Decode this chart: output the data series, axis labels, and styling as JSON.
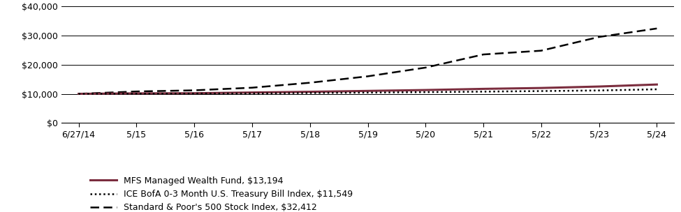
{
  "title": "",
  "x_labels": [
    "6/27/14",
    "5/15",
    "5/16",
    "5/17",
    "5/18",
    "5/19",
    "5/20",
    "5/21",
    "5/22",
    "5/23",
    "5/24"
  ],
  "x_positions": [
    0,
    1,
    2,
    3,
    4,
    5,
    6,
    7,
    8,
    9,
    10
  ],
  "mfs_values": [
    10000,
    10150,
    10200,
    10450,
    10700,
    11000,
    11300,
    11700,
    12000,
    12500,
    13194
  ],
  "ice_values": [
    10000,
    10020,
    10080,
    10160,
    10280,
    10420,
    10580,
    10750,
    10950,
    11150,
    11549
  ],
  "sp500_values": [
    10000,
    10800,
    11200,
    12100,
    13800,
    16000,
    19000,
    23500,
    24800,
    29500,
    32412
  ],
  "mfs_color": "#7B2D3E",
  "ice_color": "#000000",
  "sp500_color": "#000000",
  "ylim": [
    0,
    40000
  ],
  "yticks": [
    0,
    10000,
    20000,
    30000,
    40000
  ],
  "ytick_labels": [
    "$0",
    "$10,000",
    "$20,000",
    "$30,000",
    "$40,000"
  ],
  "legend_mfs": "MFS Managed Wealth Fund, $13,194",
  "legend_ice": "ICE BofA 0-3 Month U.S. Treasury Bill Index, $11,549",
  "legend_sp500": "Standard & Poor's 500 Stock Index, $32,412",
  "bg_color": "#ffffff",
  "grid_color": "#000000",
  "mfs_linewidth": 2.2,
  "ice_linewidth": 1.8,
  "sp500_linewidth": 1.8,
  "font_size_ticks": 9,
  "font_size_legend": 9
}
